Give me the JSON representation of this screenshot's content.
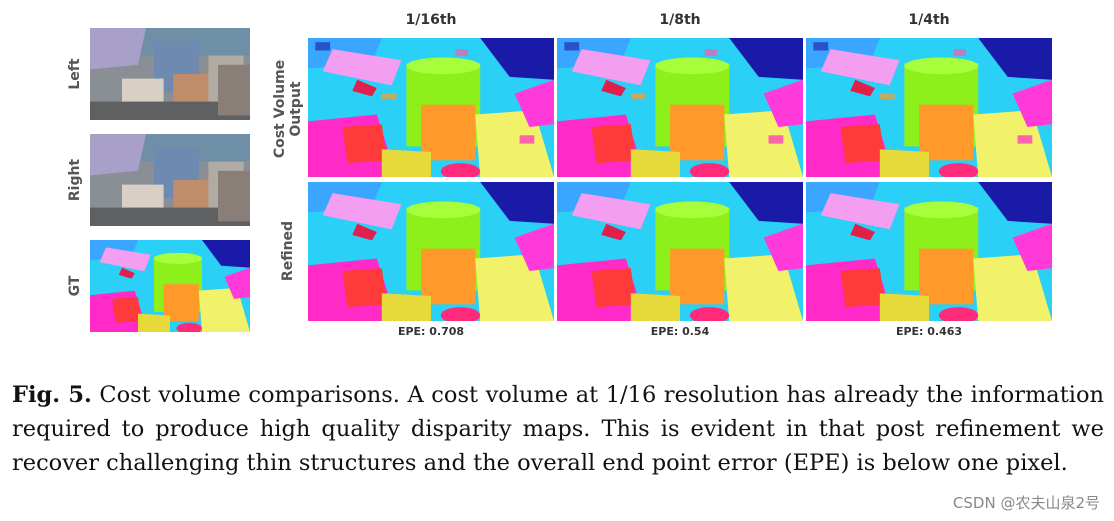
{
  "figure": {
    "row_labels_left": [
      "Left",
      "Right",
      "GT"
    ],
    "row_labels_grid": [
      "Cost Volume\nOutput",
      "Refined"
    ],
    "column_headers": [
      "1/16th",
      "1/8th",
      "1/4th"
    ],
    "epe_labels": [
      "EPE: 0.708",
      "EPE: 0.54",
      "EPE: 0.463"
    ]
  },
  "caption": {
    "fig_label": "Fig. 5.",
    "text": " Cost volume comparisons. A cost volume at 1/16 resolution has already the information required to produce high quality disparity maps. This is evident in that post refinement we recover challenging thin structures and the overall end point error (EPE) is below one pixel."
  },
  "watermark": "CSDN @农夫山泉2号"
}
